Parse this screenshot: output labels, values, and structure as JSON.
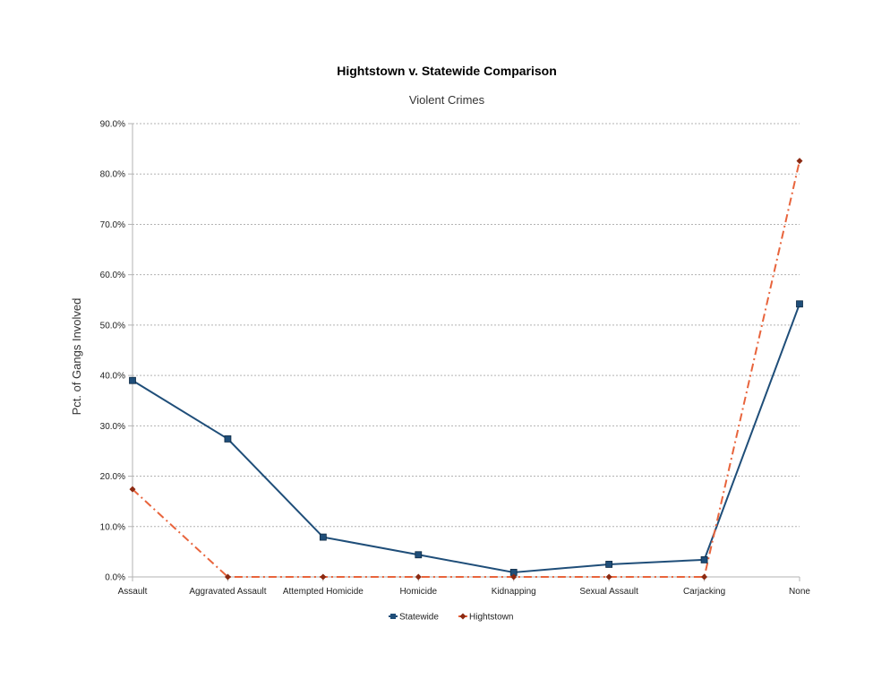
{
  "chart_data": {
    "type": "line",
    "title": "Hightstown v. Statewide Comparison",
    "subtitle": "Violent Crimes",
    "xlabel": "",
    "ylabel": "Pct. of Gangs Involved",
    "categories": [
      "Assault",
      "Aggravated Assault",
      "Attempted Homicide",
      "Homicide",
      "Kidnapping",
      "Sexual Assault",
      "Carjacking",
      "None"
    ],
    "ylim": [
      0,
      90
    ],
    "yticks": [
      "0.0%",
      "10.0%",
      "20.0%",
      "30.0%",
      "40.0%",
      "50.0%",
      "60.0%",
      "70.0%",
      "80.0%",
      "90.0%"
    ],
    "grid": true,
    "legend_position": "bottom",
    "series": [
      {
        "name": "Statewide",
        "values": [
          39.0,
          27.4,
          7.9,
          4.4,
          0.9,
          2.5,
          3.4,
          54.2
        ],
        "color": "#1f4e79",
        "marker": "square",
        "line_style": "solid"
      },
      {
        "name": "Hightstown",
        "values": [
          17.4,
          0.0,
          0.0,
          0.0,
          0.0,
          0.0,
          0.0,
          82.6
        ],
        "color": "#e8643c",
        "marker_color": "#8b2a12",
        "marker": "diamond",
        "line_style": "dash-dot"
      }
    ]
  }
}
